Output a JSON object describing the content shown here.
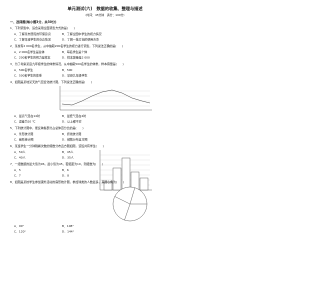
{
  "header": {
    "title": "单元测试(六)　数据的收集、整理与描述",
    "subtitle": "(时间：45分钟　满分：100分)"
  },
  "section": "一、选择题(每小题3分，共30分)",
  "questions": [
    {
      "stem": "1．下列调查中，适合采用全面调查方式的是(　　)",
      "options": [
        "A．了解某市居民的环保意识",
        "B．了解全国中学生的视力情况",
        "C．了解某班学生的身高情况",
        "D．了解一批灯泡的使用寿命"
      ]
    },
    {
      "stem": "2．某校有2 000名学生，从中抽取200名学生的视力进行调查，下列说法正确的是(　　)",
      "options": [
        "A．2 000名学生是总体",
        "B．每名学生是个体",
        "C．200名学生的视力是样本",
        "D．样本容量是2 000"
      ]
    },
    {
      "stem": "3．为了考察某县九年级学生的体重情况，从中抽取500名学生的体重，样本容量是(　　)",
      "options": [
        "A．500名学生",
        "B．500",
        "C．500名学生的体重",
        "D．某县九年级学生"
      ]
    },
    {
      "stem": "4．如图是某地某天的气温变化统计图，下列说法正确的是(　　)",
      "options": [
        "A．最高气温在14时",
        "B．最低气温在4时",
        "C．温差为10 ℃",
        "D．以上都不对"
      ]
    },
    {
      "stem": "5．下列统计图中，能反映各部分占总体百分比的是(　　)",
      "options": [
        "A．条形统计图",
        "B．折线统计图",
        "C．扇形统计图",
        "D．频数分布直方图"
      ]
    },
    {
      "stem": "6．某班学生一分钟跳绳次数的频数分布直方图如图，该班共有学生(　　)",
      "options": [
        "A．50人",
        "B．45人",
        "C．40人",
        "D．35人"
      ]
    },
    {
      "stem": "7．一组数据的最大值为96，最小值为45，若组距为10，则组数为(　　)",
      "options": [
        "A．5",
        "B．6",
        "C．7",
        "D．8"
      ]
    },
    {
      "stem": "8．如图是某校学生参加课外活动的扇形统计图，参加球类的人数最多，其圆心角为(　　)",
      "options": [
        "A．90°",
        "B．108°",
        "C．120°",
        "D．144°"
      ]
    }
  ]
}
